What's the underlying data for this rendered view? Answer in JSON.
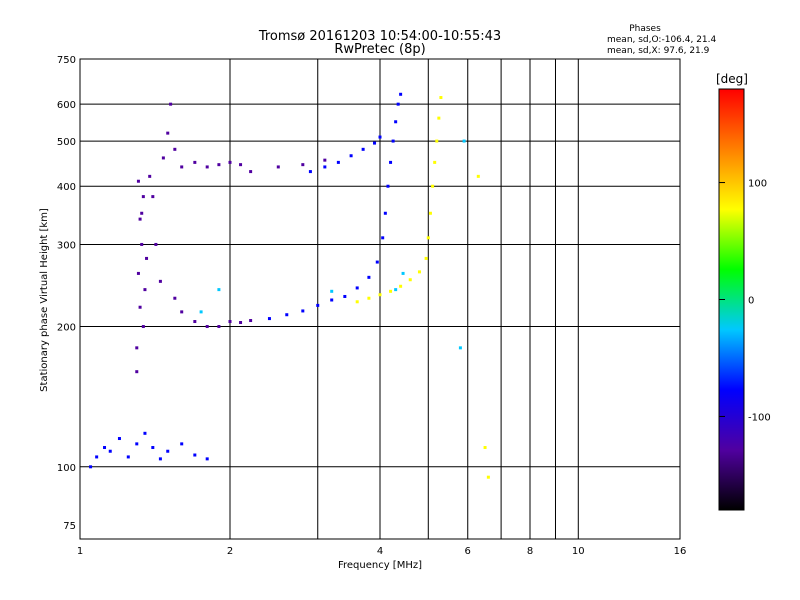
{
  "chart_data": {
    "type": "scatter",
    "title": "Tromsø 20161203 10:54:00-10:55:43",
    "subtitle": "RwPretec (8p)",
    "xlabel": "Frequency [MHz]",
    "ylabel": "Stationary phase Virtual Height [km]",
    "x_scale": "log",
    "y_scale": "log",
    "xlim": [
      1,
      16
    ],
    "ylim": [
      70,
      750
    ],
    "grid": true,
    "x_ticks": [
      {
        "value": 1,
        "label": "1"
      },
      {
        "value": 2,
        "label": "2"
      },
      {
        "value": 4,
        "label": "4"
      },
      {
        "value": 6,
        "label": "6"
      },
      {
        "value": 8,
        "label": "8"
      },
      {
        "value": 10,
        "label": "10"
      },
      {
        "value": 16,
        "label": "16"
      }
    ],
    "x_minor_grid": [
      3,
      5,
      7,
      9
    ],
    "y_ticks": [
      {
        "value": 750,
        "label": "750"
      },
      {
        "value": 600,
        "label": "600"
      },
      {
        "value": 500,
        "label": "500"
      },
      {
        "value": 400,
        "label": "400"
      },
      {
        "value": 300,
        "label": "300"
      },
      {
        "value": 200,
        "label": "200"
      },
      {
        "value": 100,
        "label": "100"
      },
      {
        "value": 75,
        "label": "75"
      }
    ],
    "y_grid": [
      600,
      500,
      400,
      300,
      200,
      100
    ],
    "phase_info": {
      "title": "Phases",
      "line_o": "mean, sd,O:-106.4, 21.4",
      "line_x": "mean, sd,X:  97.6, 21.9"
    },
    "colorbar": {
      "label": "[deg]",
      "range": [
        -180,
        180
      ],
      "ticks": [
        {
          "value": 100,
          "label": "100"
        },
        {
          "value": 0,
          "label": "0"
        },
        {
          "value": -100,
          "label": "-100"
        }
      ],
      "colors": [
        "#000000",
        "#5000a0",
        "#0000ff",
        "#00c8ff",
        "#00ff00",
        "#ffff00",
        "#ff8000",
        "#ff0000"
      ]
    },
    "series": [
      {
        "phase": -130,
        "points": [
          [
            1.3,
            180
          ],
          [
            1.32,
            220
          ],
          [
            1.31,
            260
          ],
          [
            1.33,
            300
          ],
          [
            1.32,
            340
          ],
          [
            1.34,
            380
          ],
          [
            1.31,
            410
          ],
          [
            1.35,
            240
          ],
          [
            1.3,
            160
          ],
          [
            1.34,
            200
          ],
          [
            1.36,
            280
          ],
          [
            1.33,
            350
          ],
          [
            1.38,
            420
          ],
          [
            1.4,
            380
          ],
          [
            1.42,
            300
          ],
          [
            1.45,
            250
          ],
          [
            1.47,
            460
          ],
          [
            1.5,
            520
          ],
          [
            1.52,
            600
          ],
          [
            1.55,
            480
          ],
          [
            1.6,
            440
          ],
          [
            1.7,
            450
          ],
          [
            1.8,
            440
          ],
          [
            1.9,
            445
          ],
          [
            2.0,
            450
          ],
          [
            2.1,
            445
          ],
          [
            2.2,
            430
          ],
          [
            2.5,
            440
          ],
          [
            2.8,
            445
          ],
          [
            3.1,
            455
          ],
          [
            1.55,
            230
          ],
          [
            1.6,
            215
          ],
          [
            1.7,
            205
          ],
          [
            1.8,
            200
          ],
          [
            1.9,
            200
          ],
          [
            2.0,
            205
          ],
          [
            2.1,
            204
          ],
          [
            2.2,
            206
          ]
        ]
      },
      {
        "phase": -100,
        "points": [
          [
            1.05,
            100
          ],
          [
            1.08,
            105
          ],
          [
            1.12,
            110
          ],
          [
            1.15,
            108
          ],
          [
            1.2,
            115
          ],
          [
            1.25,
            105
          ],
          [
            1.3,
            112
          ],
          [
            1.35,
            118
          ],
          [
            1.4,
            110
          ],
          [
            1.45,
            104
          ],
          [
            1.5,
            108
          ],
          [
            1.6,
            112
          ],
          [
            1.7,
            106
          ],
          [
            1.8,
            104
          ],
          [
            2.4,
            208
          ],
          [
            2.6,
            212
          ],
          [
            2.8,
            216
          ],
          [
            3.0,
            222
          ],
          [
            3.2,
            228
          ],
          [
            3.4,
            232
          ],
          [
            3.6,
            242
          ],
          [
            3.8,
            255
          ],
          [
            3.95,
            275
          ],
          [
            4.05,
            310
          ],
          [
            4.1,
            350
          ],
          [
            4.15,
            400
          ],
          [
            4.2,
            450
          ],
          [
            4.25,
            500
          ],
          [
            4.3,
            550
          ],
          [
            4.35,
            600
          ],
          [
            4.4,
            630
          ],
          [
            2.9,
            430
          ],
          [
            3.1,
            440
          ],
          [
            3.3,
            450
          ],
          [
            3.5,
            465
          ],
          [
            3.7,
            480
          ],
          [
            3.9,
            495
          ],
          [
            4.0,
            510
          ]
        ]
      },
      {
        "phase": -30,
        "points": [
          [
            1.75,
            215
          ],
          [
            1.9,
            240
          ],
          [
            3.2,
            238
          ],
          [
            4.3,
            240
          ],
          [
            4.45,
            260
          ],
          [
            5.8,
            180
          ],
          [
            5.9,
            500
          ]
        ]
      },
      {
        "phase": 90,
        "points": [
          [
            3.6,
            226
          ],
          [
            3.8,
            230
          ],
          [
            4.0,
            234
          ],
          [
            4.2,
            238
          ],
          [
            4.4,
            244
          ],
          [
            4.6,
            252
          ],
          [
            4.8,
            262
          ],
          [
            4.95,
            280
          ],
          [
            5.0,
            310
          ],
          [
            5.05,
            350
          ],
          [
            5.1,
            400
          ],
          [
            5.15,
            450
          ],
          [
            5.2,
            500
          ],
          [
            5.25,
            560
          ],
          [
            5.3,
            620
          ],
          [
            6.3,
            420
          ],
          [
            6.5,
            110
          ],
          [
            6.6,
            95
          ]
        ]
      }
    ]
  }
}
